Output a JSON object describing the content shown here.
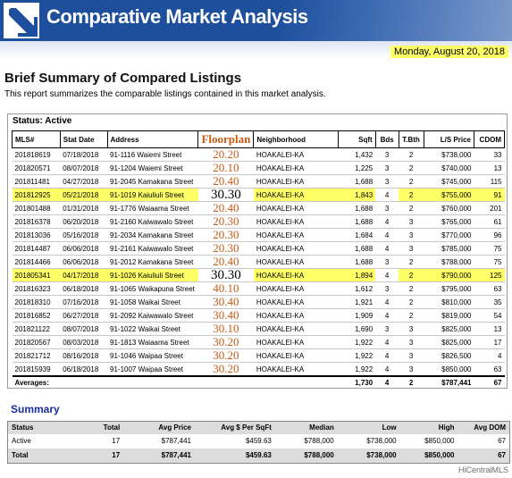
{
  "header": {
    "title": "Comparative Market Analysis",
    "date": "Monday, August 20, 2018",
    "logo_icon": "arrow-logo-icon"
  },
  "report": {
    "heading": "Brief Summary of Compared Listings",
    "intro": "This report summarizes the comparable listings contained in this market analysis.",
    "status_label": "Status: Active"
  },
  "columns": {
    "mls": "MLS#",
    "stat_date": "Stat Date",
    "address": "Address",
    "floorplan": "Floorplan",
    "neighborhood": "Neighborhood",
    "sqft": "Sqft",
    "bds": "Bds",
    "tbth": "T.Bth",
    "price": "L/S Price",
    "cdom": "CDOM"
  },
  "listings": [
    {
      "mls": "201818619",
      "date": "07/18/2018",
      "address": "91-1116 Waiemi Street",
      "floorplan": "20.20",
      "hood": "HOAKALEI-KA",
      "sqft": "1,432",
      "bds": "3",
      "bth": "2",
      "price": "$738,000",
      "cdom": "33",
      "hl": false
    },
    {
      "mls": "201820571",
      "date": "08/07/2018",
      "address": "91-1204 Waiemi Street",
      "floorplan": "20.10",
      "hood": "HOAKALEI-KA",
      "sqft": "1,225",
      "bds": "3",
      "bth": "2",
      "price": "$740,000",
      "cdom": "13",
      "hl": false
    },
    {
      "mls": "201811481",
      "date": "04/27/2018",
      "address": "91-2045 Kamakana Street",
      "floorplan": "20.40",
      "hood": "HOAKALEI-KA",
      "sqft": "1,688",
      "bds": "3",
      "bth": "2",
      "price": "$745,000",
      "cdom": "115",
      "hl": false
    },
    {
      "mls": "201812925",
      "date": "05/21/2018",
      "address": "91-1019 Kaiuliuli Street",
      "floorplan": "30.30",
      "hood": "HOAKALEI-KA",
      "sqft": "1,843",
      "bds": "4",
      "bth": "2",
      "price": "$755,000",
      "cdom": "91",
      "hl": true
    },
    {
      "mls": "201801488",
      "date": "01/31/2018",
      "address": "91-1776 Waiaama Street",
      "floorplan": "20.40",
      "hood": "HOAKALEI-KA",
      "sqft": "1,688",
      "bds": "3",
      "bth": "2",
      "price": "$760,000",
      "cdom": "201",
      "hl": false
    },
    {
      "mls": "201816378",
      "date": "06/20/2018",
      "address": "91-2160 Kaiwawalo Street",
      "floorplan": "20.30",
      "hood": "HOAKALEI-KA",
      "sqft": "1,688",
      "bds": "4",
      "bth": "3",
      "price": "$765,000",
      "cdom": "61",
      "hl": false
    },
    {
      "mls": "201813036",
      "date": "05/16/2018",
      "address": "91-2034 Kamakana Street",
      "floorplan": "20.30",
      "hood": "HOAKALEI-KA",
      "sqft": "1,684",
      "bds": "4",
      "bth": "3",
      "price": "$770,000",
      "cdom": "96",
      "hl": false
    },
    {
      "mls": "201814487",
      "date": "06/06/2018",
      "address": "91-2161 Kaiwawalo Street",
      "floorplan": "20.30",
      "hood": "HOAKALEI-KA",
      "sqft": "1,688",
      "bds": "4",
      "bth": "3",
      "price": "$785,000",
      "cdom": "75",
      "hl": false
    },
    {
      "mls": "201814466",
      "date": "06/06/2018",
      "address": "91-2012 Kamakana Street",
      "floorplan": "20.40",
      "hood": "HOAKALEI-KA",
      "sqft": "1,688",
      "bds": "3",
      "bth": "2",
      "price": "$788,000",
      "cdom": "75",
      "hl": false
    },
    {
      "mls": "201805341",
      "date": "04/17/2018",
      "address": "91-1026 Kaiuliuli Street",
      "floorplan": "30.30",
      "hood": "HOAKALEI-KA",
      "sqft": "1,894",
      "bds": "4",
      "bth": "2",
      "price": "$790,000",
      "cdom": "125",
      "hl": true
    },
    {
      "mls": "201816323",
      "date": "06/18/2018",
      "address": "91-1065 Waikapuna Street",
      "floorplan": "40.10",
      "hood": "HOAKALEI-KA",
      "sqft": "1,612",
      "bds": "3",
      "bth": "2",
      "price": "$795,000",
      "cdom": "63",
      "hl": false
    },
    {
      "mls": "201818310",
      "date": "07/16/2018",
      "address": "91-1058 Waikai Street",
      "floorplan": "30.40",
      "hood": "HOAKALEI-KA",
      "sqft": "1,921",
      "bds": "4",
      "bth": "2",
      "price": "$810,000",
      "cdom": "35",
      "hl": false
    },
    {
      "mls": "201816852",
      "date": "06/27/2018",
      "address": "91-2092 Kaiwawalo Street",
      "floorplan": "30.40",
      "hood": "HOAKALEI-KA",
      "sqft": "1,909",
      "bds": "4",
      "bth": "2",
      "price": "$819,000",
      "cdom": "54",
      "hl": false
    },
    {
      "mls": "201821122",
      "date": "08/07/2018",
      "address": "91-1022 Waikai Street",
      "floorplan": "30.10",
      "hood": "HOAKALEI-KA",
      "sqft": "1,690",
      "bds": "3",
      "bth": "3",
      "price": "$825,000",
      "cdom": "13",
      "hl": false
    },
    {
      "mls": "201820567",
      "date": "08/03/2018",
      "address": "91-1813 Waiaama Street",
      "floorplan": "30.20",
      "hood": "HOAKALEI-KA",
      "sqft": "1,922",
      "bds": "4",
      "bth": "3",
      "price": "$825,000",
      "cdom": "17",
      "hl": false
    },
    {
      "mls": "201821712",
      "date": "08/16/2018",
      "address": "91-1046 Waipaa Street",
      "floorplan": "30.20",
      "hood": "HOAKALEI-KA",
      "sqft": "1,922",
      "bds": "4",
      "bth": "3",
      "price": "$826,500",
      "cdom": "4",
      "hl": false
    },
    {
      "mls": "201815939",
      "date": "06/18/2018",
      "address": "91-1007 Waipaa Street",
      "floorplan": "30.20",
      "hood": "HOAKALEI-KA",
      "sqft": "1,922",
      "bds": "4",
      "bth": "3",
      "price": "$850,000",
      "cdom": "63",
      "hl": false
    }
  ],
  "averages": {
    "label": "Averages:",
    "sqft": "1,730",
    "bds": "4",
    "bth": "2",
    "price": "$787,441",
    "cdom": "67"
  },
  "summary": {
    "heading": "Summary",
    "headers": [
      "Status",
      "Total",
      "Avg Price",
      "Avg $ Per SqFt",
      "Median",
      "Low",
      "High",
      "Avg DOM"
    ],
    "rows": [
      {
        "status": "Active",
        "total": "17",
        "avg_price": "$787,441",
        "per_sqft": "$459.63",
        "median": "$788,000",
        "low": "$738,000",
        "high": "$850,000",
        "dom": "67"
      }
    ],
    "total": {
      "status": "Total",
      "total": "17",
      "avg_price": "$787,441",
      "per_sqft": "$459.63",
      "median": "$788,000",
      "low": "$738,000",
      "high": "$850,000",
      "dom": "67"
    }
  },
  "watermark": "HiCentralMLS",
  "colors": {
    "banner": "#1e4f9c",
    "highlight": "#ffff66",
    "floorplan_annotation": "#c85a12",
    "summary_heading": "#1a2fa0"
  }
}
